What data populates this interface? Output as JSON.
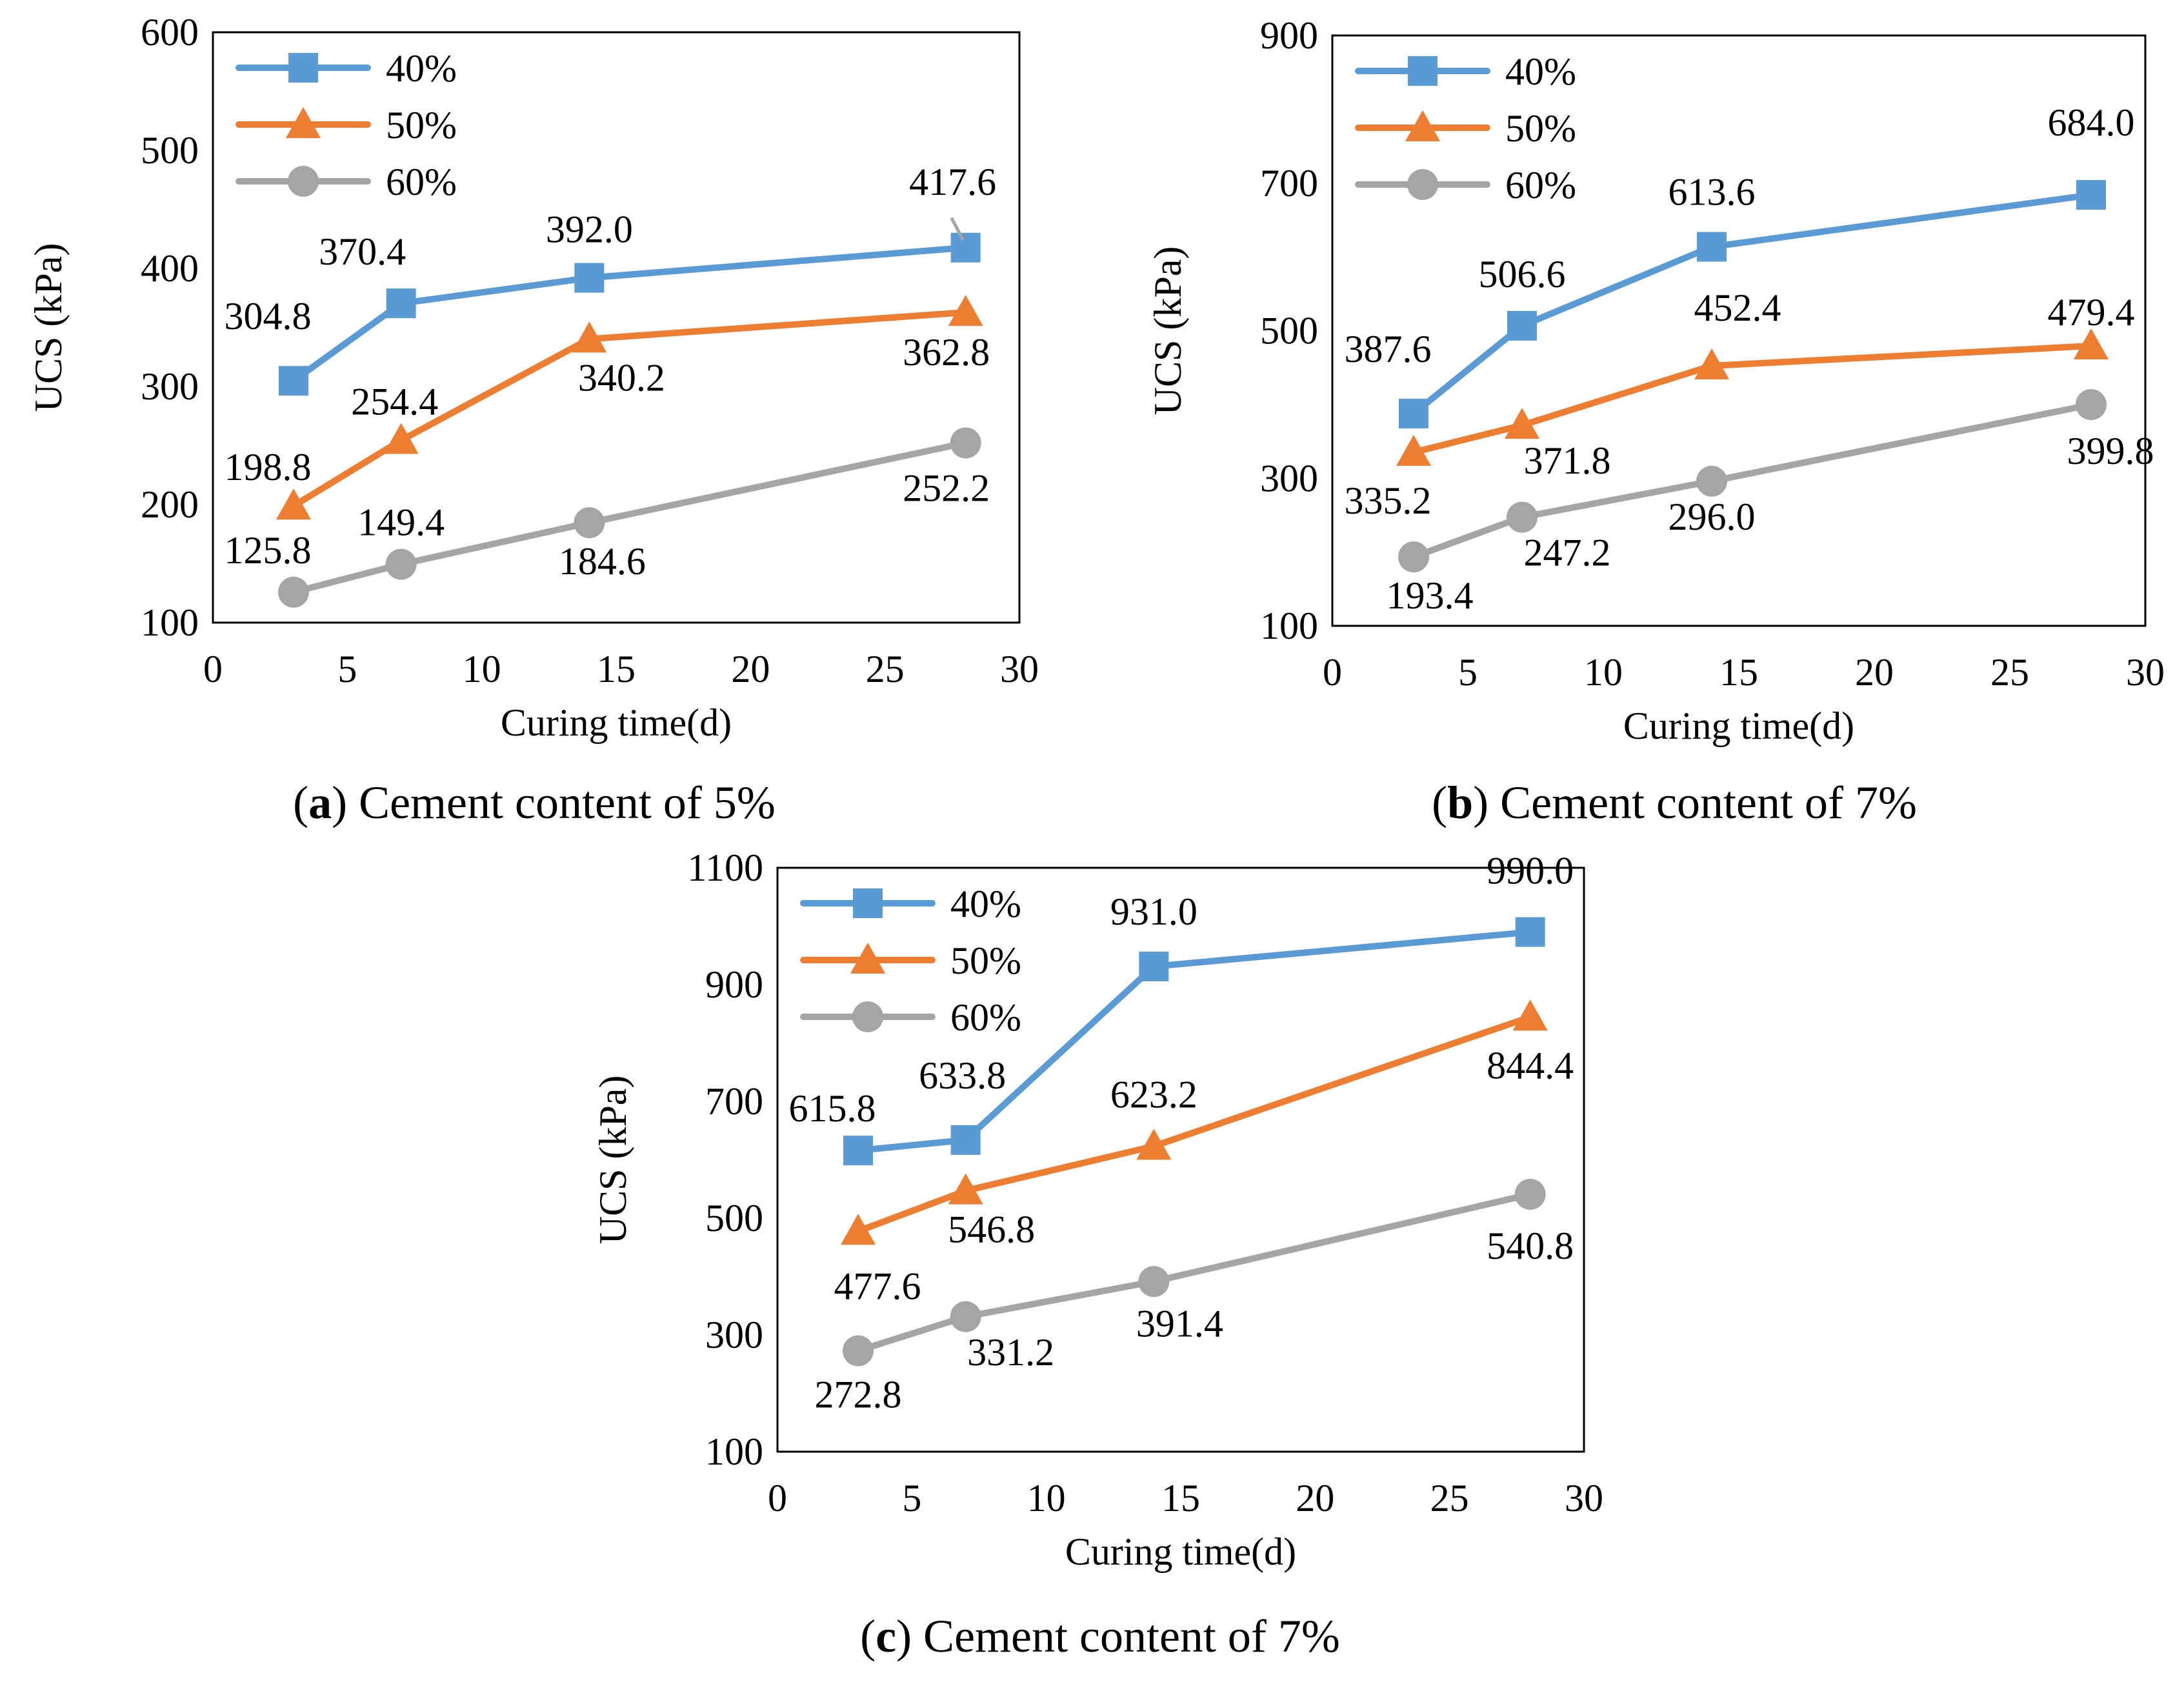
{
  "chart_data": [
    {
      "type": "line",
      "caption": {
        "open": "(",
        "letter": "a",
        "close": ")",
        "text": " Cement content of 5%"
      },
      "xlabel": "Curing time(d)",
      "ylabel": "UCS (kPa)",
      "xlim": [
        0,
        30
      ],
      "ylim": [
        100,
        600
      ],
      "xticks": [
        0,
        5,
        10,
        15,
        20,
        25,
        30
      ],
      "yticks": [
        100,
        200,
        300,
        400,
        500,
        600
      ],
      "grid": false,
      "legend": "top-left",
      "x": [
        3,
        7,
        14,
        28
      ],
      "series": [
        {
          "name": "40%",
          "color": "#5b9bd5",
          "marker": "square",
          "values": [
            304.8,
            370.4,
            392.0,
            417.6
          ],
          "labels": [
            "304.8",
            "370.4",
            "392.0",
            "417.6"
          ]
        },
        {
          "name": "50%",
          "color": "#ed7d31",
          "marker": "triangle",
          "values": [
            198.8,
            254.4,
            340.2,
            362.8
          ],
          "labels": [
            "198.8",
            "254.4",
            "340.2",
            "362.8"
          ]
        },
        {
          "name": "60%",
          "color": "#a5a5a5",
          "marker": "circle",
          "values": [
            125.8,
            149.4,
            184.6,
            252.2
          ],
          "labels": [
            "125.8",
            "149.4",
            "184.6",
            "252.2"
          ]
        }
      ]
    },
    {
      "type": "line",
      "caption": {
        "open": "(",
        "letter": "b",
        "close": ")",
        "text": " Cement content of 7%"
      },
      "xlabel": "Curing time(d)",
      "ylabel": "UCS (kPa)",
      "xlim": [
        0,
        30
      ],
      "ylim": [
        100,
        900
      ],
      "xticks": [
        0,
        5,
        10,
        15,
        20,
        25,
        30
      ],
      "yticks": [
        100,
        300,
        500,
        700,
        900
      ],
      "grid": false,
      "legend": "top-left",
      "x": [
        3,
        7,
        14,
        28
      ],
      "series": [
        {
          "name": "40%",
          "color": "#5b9bd5",
          "marker": "square",
          "values": [
            387.6,
            506.6,
            613.6,
            684.0
          ],
          "labels": [
            "387.6",
            "506.6",
            "613.6",
            "684.0"
          ]
        },
        {
          "name": "50%",
          "color": "#ed7d31",
          "marker": "triangle",
          "values": [
            335.2,
            371.8,
            452.4,
            479.4
          ],
          "labels": [
            "335.2",
            "371.8",
            "452.4",
            "479.4"
          ]
        },
        {
          "name": "60%",
          "color": "#a5a5a5",
          "marker": "circle",
          "values": [
            193.4,
            247.2,
            296.0,
            399.8
          ],
          "labels": [
            "193.4",
            "247.2",
            "296.0",
            "399.8"
          ]
        }
      ]
    },
    {
      "type": "line",
      "caption": {
        "open": "(",
        "letter": "c",
        "close": ")",
        "text": " Cement content of 7%"
      },
      "xlabel": "Curing time(d)",
      "ylabel": "UCS (kPa)",
      "xlim": [
        0,
        30
      ],
      "ylim": [
        100,
        1100
      ],
      "xticks": [
        0,
        5,
        10,
        15,
        20,
        25,
        30
      ],
      "yticks": [
        100,
        300,
        500,
        700,
        900,
        1100
      ],
      "grid": false,
      "legend": "top-left",
      "x": [
        3,
        7,
        14,
        28
      ],
      "series": [
        {
          "name": "40%",
          "color": "#5b9bd5",
          "marker": "square",
          "values": [
            615.8,
            633.8,
            931.0,
            990.0
          ],
          "labels": [
            "615.8",
            "633.8",
            "931.0",
            "990.0"
          ]
        },
        {
          "name": "50%",
          "color": "#ed7d31",
          "marker": "triangle",
          "values": [
            477.6,
            546.8,
            623.2,
            844.4
          ],
          "labels": [
            "477.6",
            "546.8",
            "623.2",
            "844.4"
          ]
        },
        {
          "name": "60%",
          "color": "#a5a5a5",
          "marker": "circle",
          "values": [
            272.8,
            331.2,
            391.4,
            540.8
          ],
          "labels": [
            "272.8",
            "331.2",
            "391.4",
            "540.8"
          ]
        }
      ]
    }
  ]
}
